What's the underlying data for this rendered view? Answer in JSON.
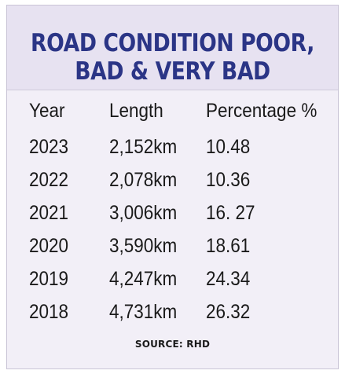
{
  "chart_data": {
    "type": "table",
    "title_lines": [
      "ROAD CONDITION POOR,",
      "BAD & VERY BAD"
    ],
    "columns": [
      "Year",
      "Length",
      "Percentage %"
    ],
    "rows": [
      [
        "2023",
        "2,152km",
        "10.48"
      ],
      [
        "2022",
        "2,078km",
        "10.36"
      ],
      [
        "2021",
        "3,006km",
        "16. 27"
      ],
      [
        "2020",
        "3,590km",
        "18.61"
      ],
      [
        "2019",
        "4,247km",
        "24.34"
      ],
      [
        "2018",
        "4,731km",
        "26.32"
      ]
    ],
    "source": "SOURCE: RHD",
    "colors": {
      "title": "#2b3586",
      "title_background": "#e7e2f1",
      "table_background": "#f2eff7",
      "text": "#1a1a1a"
    }
  }
}
